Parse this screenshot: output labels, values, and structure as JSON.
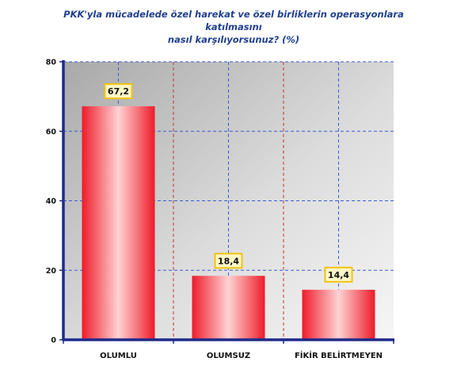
{
  "chart_data": {
    "type": "bar",
    "title_line1": "PKK'yla mücadelede özel harekat ve özel birliklerin operasyonlara katılmasını",
    "title_line2": "nasıl karşılıyorsunuz? (%)",
    "categories": [
      "OLUMLU",
      "OLUMSUZ",
      "FİKİR BELİRTMEYEN"
    ],
    "values": [
      67.2,
      18.4,
      14.4
    ],
    "value_labels": [
      "67,2",
      "18,4",
      "14,4"
    ],
    "y_ticks": [
      "0",
      "20",
      "40",
      "60",
      "80"
    ],
    "ylim": [
      0,
      80
    ],
    "grid": true,
    "colors": {
      "bar_edge": "#ee1c2b",
      "bar_center": "#ffd3d3",
      "plot_bg_dark": "#a9a9a9",
      "plot_bg_light": "#f4f4f4",
      "grid_h": "#3b5bd6",
      "grid_v": "#c0392b",
      "axis": "#1e2a8a",
      "label_box": "#fff6c8",
      "label_box_edge": "#f1c40f",
      "title": "#1f3f8f"
    }
  }
}
